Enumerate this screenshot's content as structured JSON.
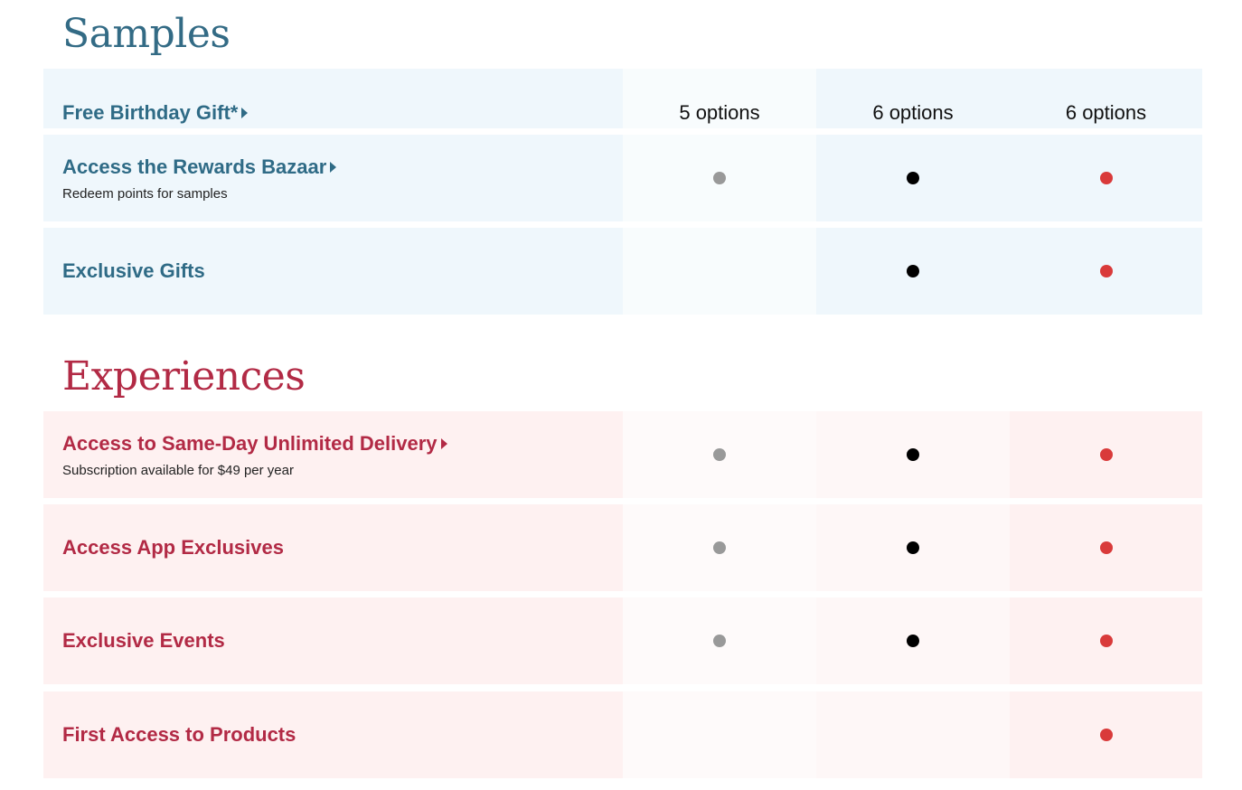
{
  "colors": {
    "tier1_dot": "#999999",
    "tier2_dot": "#000000",
    "tier3_dot": "#d93a3a",
    "samples_accent": "#336b85",
    "experiences_accent": "#b22a45"
  },
  "samples": {
    "title": "Samples",
    "header_row": {
      "label": "Free Birthday Gift*",
      "options": [
        "5 options",
        "6 options",
        "6 options"
      ]
    },
    "rows": [
      {
        "label": "Access the Rewards Bazaar",
        "sub": "Redeem points for samples",
        "tiers": [
          true,
          true,
          true
        ]
      },
      {
        "label": "Exclusive Gifts",
        "sub": "",
        "tiers": [
          false,
          true,
          true
        ]
      }
    ]
  },
  "experiences": {
    "title": "Experiences",
    "rows": [
      {
        "label": "Access to Same-Day Unlimited Delivery",
        "sub": "Subscription available for $49 per year",
        "tiers": [
          true,
          true,
          true
        ]
      },
      {
        "label": "Access App Exclusives",
        "sub": "",
        "tiers": [
          true,
          true,
          true
        ]
      },
      {
        "label": "Exclusive Events",
        "sub": "",
        "tiers": [
          true,
          true,
          true
        ]
      },
      {
        "label": "First Access to Products",
        "sub": "",
        "tiers": [
          false,
          false,
          true
        ]
      }
    ]
  }
}
